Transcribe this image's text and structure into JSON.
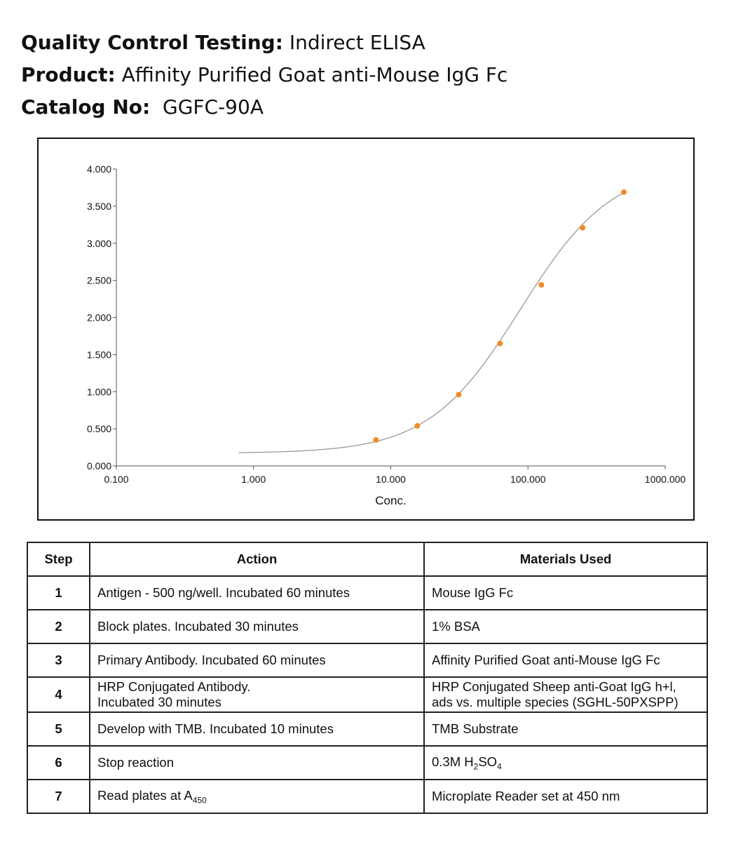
{
  "header": {
    "qc_label": "Quality Control Testing:",
    "qc_value": "Indirect ELISA",
    "product_label": "Product:",
    "product_value": "Affinity Purified Goat anti-Mouse IgG Fc",
    "catalog_label": "Catalog No:",
    "catalog_value": "GGFC-90A"
  },
  "chart_data": {
    "type": "scatter",
    "title": "",
    "xlabel": "Conc.",
    "ylabel": "",
    "x_scale": "log",
    "xlim": [
      0.1,
      1000
    ],
    "ylim": [
      0,
      4
    ],
    "x_ticks": [
      "0.100",
      "1.000",
      "10.000",
      "100.000",
      "1000.000"
    ],
    "y_ticks": [
      "0.000",
      "0.500",
      "1.000",
      "1.500",
      "2.000",
      "2.500",
      "3.000",
      "3.500",
      "4.000"
    ],
    "grid": false,
    "point_color": "#f28c28",
    "curve_color": "#999999",
    "series": [
      {
        "x": [
          7.8,
          15.6,
          31.25,
          62.5,
          125,
          250,
          500
        ],
        "y": [
          0.35,
          0.54,
          0.96,
          1.65,
          2.44,
          3.21,
          3.69
        ]
      }
    ],
    "fit_curve": {
      "type": "4PL",
      "x_range": [
        0.78,
        500
      ],
      "bottom": 0.17,
      "top": 4.05,
      "ec50": 88,
      "hill": 1.3
    }
  },
  "table": {
    "headers": [
      "Step",
      "Action",
      "Materials Used"
    ],
    "rows": [
      {
        "step": "1",
        "action": "Antigen - 500 ng/well. Incubated 60 minutes",
        "materials": "Mouse IgG Fc"
      },
      {
        "step": "2",
        "action": "Block plates. Incubated 30 minutes",
        "materials": "1% BSA"
      },
      {
        "step": "3",
        "action": "Primary Antibody.  Incubated 60 minutes",
        "materials": "Affinity Purified Goat anti-Mouse IgG Fc"
      },
      {
        "step": "4",
        "action": "HRP Conjugated Antibody.",
        "action2": "Incubated 30 minutes",
        "materials": "HRP Conjugated Sheep anti-Goat IgG h+l,",
        "materials2": "ads vs. multiple species (SGHL-50PXSPP)"
      },
      {
        "step": "5",
        "action": "Develop with TMB.  Incubated 10 minutes",
        "materials": "TMB Substrate"
      },
      {
        "step": "6",
        "action": "Stop reaction",
        "materials": "0.3M H",
        "materials_sub1": "2",
        "materials_mid": "SO",
        "materials_sub2": "4"
      },
      {
        "step": "7",
        "action": "Read plates at A",
        "action_sub": "450",
        "materials": "Microplate Reader set at 450 nm"
      }
    ]
  }
}
